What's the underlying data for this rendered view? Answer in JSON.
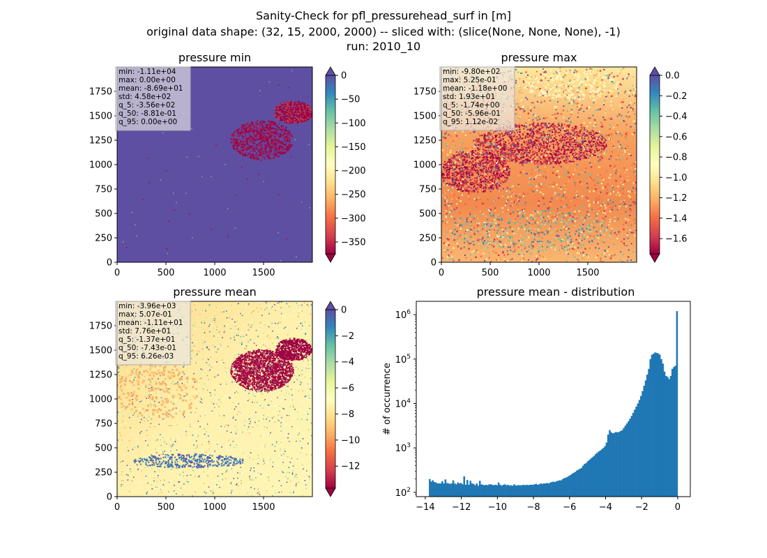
{
  "figure": {
    "title_lines": [
      "Sanity-Check for pfl_pressurehead_surf in [m]",
      "original data shape: (32, 15, 2000, 2000) -- sliced with: (slice(None, None, None), -1)",
      "run: 2010_10"
    ]
  },
  "chart_data": [
    {
      "type": "heatmap",
      "title": "pressure min",
      "xticks": [
        "0",
        "500",
        "1000",
        "1500"
      ],
      "yticks": [
        "0",
        "250",
        "500",
        "750",
        "1000",
        "1250",
        "1500",
        "1750"
      ],
      "xlim": [
        0,
        2000
      ],
      "ylim": [
        0,
        2000
      ],
      "background_color": "#5e4fa2",
      "colormap": "Spectral",
      "colorbar": {
        "ticks": [
          "0",
          "−50",
          "−100",
          "−150",
          "−200",
          "−250",
          "−300",
          "−350"
        ],
        "range": [
          -375,
          0
        ],
        "extend": "both"
      },
      "stats": [
        "min: -1.11e+04",
        "max: 0.00e+00",
        "mean: -8.69e+01",
        "std: 4.58e+02",
        "q_5: -3.56e+02",
        "q_50: -8.81e-01",
        "q_95: 0.00e+00"
      ]
    },
    {
      "type": "heatmap",
      "title": "pressure max",
      "xticks": [
        "0",
        "500",
        "1000",
        "1500"
      ],
      "yticks": [
        "0",
        "250",
        "500",
        "750",
        "1000",
        "1250",
        "1500",
        "1750"
      ],
      "xlim": [
        0,
        2000
      ],
      "ylim": [
        0,
        2000
      ],
      "colormap": "Spectral",
      "colorbar": {
        "ticks": [
          "0.0",
          "−0.2",
          "−0.4",
          "−0.6",
          "−0.8",
          "−1.0",
          "−1.2",
          "−1.4",
          "−1.6"
        ],
        "range": [
          -1.75,
          0
        ],
        "extend": "both"
      },
      "stats": [
        "min: -9.80e+02",
        "max: 5.25e-01",
        "mean: -1.18e+00",
        "std: 1.93e+01",
        "q_5: -1.74e+00",
        "q_50: -5.96e-01",
        "q_95: 1.12e-02"
      ]
    },
    {
      "type": "heatmap",
      "title": "pressure mean",
      "xticks": [
        "0",
        "500",
        "1000",
        "1500"
      ],
      "yticks": [
        "0",
        "250",
        "500",
        "750",
        "1000",
        "1250",
        "1500",
        "1750"
      ],
      "xlim": [
        0,
        2000
      ],
      "ylim": [
        0,
        2000
      ],
      "colormap": "Spectral",
      "colorbar": {
        "ticks": [
          "0",
          "−2",
          "−4",
          "−6",
          "−8",
          "−10",
          "−12"
        ],
        "range": [
          -13.7,
          0
        ],
        "extend": "both"
      },
      "stats": [
        "min: -3.96e+03",
        "max: 5.07e-01",
        "mean: -1.11e+01",
        "std: 7.76e+01",
        "q_5: -1.37e+01",
        "q_50: -7.43e-01",
        "q_95: 6.26e-03"
      ]
    },
    {
      "type": "bar",
      "title": "pressure mean - distribution",
      "ylabel": "# of occurrence",
      "xticks": [
        "−14",
        "−12",
        "−10",
        "−8",
        "−6",
        "−4",
        "−2",
        "0"
      ],
      "xlim": [
        -14.5,
        0.7
      ],
      "yscale": "log",
      "ylim": [
        80,
        2000000
      ],
      "bar_color": "#1f77b4",
      "bin_range": [
        -13.8,
        0.0
      ],
      "log10_counts": [
        2.3,
        2.24,
        2.27,
        2.23,
        2.22,
        2.2,
        2.2,
        2.2,
        2.25,
        2.2,
        2.29,
        2.21,
        2.2,
        2.19,
        2.2,
        2.27,
        2.2,
        2.18,
        2.22,
        2.2,
        2.21,
        2.18,
        2.36,
        2.17,
        2.28,
        2.17,
        2.26,
        2.2,
        2.19,
        2.16,
        2.2,
        2.15,
        2.26,
        2.18,
        2.17,
        2.16,
        2.17,
        2.16,
        2.18,
        2.18,
        2.17,
        2.16,
        2.17,
        2.16,
        2.22,
        2.17,
        2.15,
        2.17,
        2.18,
        2.16,
        2.17,
        2.15,
        2.16,
        2.15,
        2.18,
        2.15,
        2.16,
        2.16,
        2.16,
        2.16,
        2.17,
        2.16,
        2.17,
        2.16,
        2.17,
        2.17,
        2.17,
        2.18,
        2.19,
        2.17,
        2.18,
        2.2,
        2.19,
        2.2,
        2.2,
        2.21,
        2.2,
        2.22,
        2.23,
        2.24,
        2.23,
        2.25,
        2.26,
        2.27,
        2.27,
        2.3,
        2.32,
        2.33,
        2.35,
        2.37,
        2.39,
        2.42,
        2.44,
        2.46,
        2.49,
        2.51,
        2.53,
        2.55,
        2.6,
        2.64,
        2.66,
        2.7,
        2.73,
        2.76,
        2.79,
        2.82,
        2.86,
        2.89,
        2.92,
        2.94,
        2.97,
        3.0,
        3.04,
        3.12,
        3.3,
        3.4,
        3.35,
        3.33,
        3.34,
        3.36,
        3.35,
        3.36,
        3.38,
        3.4,
        3.45,
        3.5,
        3.55,
        3.6,
        3.66,
        3.72,
        3.79,
        3.86,
        3.93,
        4.0,
        4.08,
        4.17,
        4.28,
        4.4,
        4.52,
        4.65,
        4.78,
        5.0,
        5.1,
        5.12,
        5.15,
        5.14,
        5.13,
        5.1,
        5.0,
        4.9,
        4.72,
        4.62,
        4.6,
        4.55,
        4.62,
        4.78,
        4.82,
        4.85,
        6.08
      ]
    }
  ]
}
